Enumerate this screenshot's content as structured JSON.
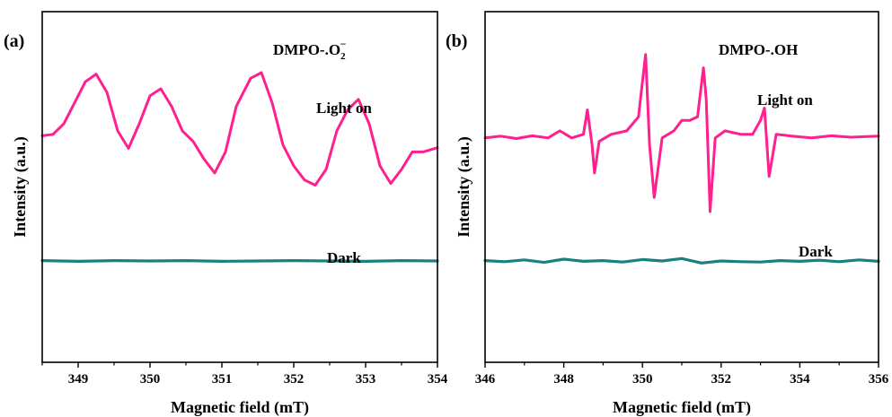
{
  "colors": {
    "light_on": "#ff1f8e",
    "dark": "#198080",
    "axis": "#000000"
  },
  "chart_data": [
    {
      "type": "line",
      "panel_label": "(a)",
      "title": "",
      "annotation_main": "DMPO-.O",
      "annotation_sub": "2",
      "annotation_sup": "−",
      "xlabel": "Magnetic field (mT)",
      "ylabel": "Intensity (a.u.)",
      "xlim": [
        348.5,
        354.0
      ],
      "xticks": [
        349,
        350,
        351,
        352,
        353,
        354
      ],
      "ylim": [
        0,
        1
      ],
      "grid": false,
      "series": [
        {
          "name": "Light on",
          "color": "#ff1f8e",
          "x": [
            348.5,
            348.65,
            348.8,
            348.95,
            349.1,
            349.25,
            349.4,
            349.55,
            349.7,
            349.85,
            350.0,
            350.15,
            350.3,
            350.45,
            350.6,
            350.75,
            350.9,
            351.05,
            351.2,
            351.4,
            351.55,
            351.7,
            351.85,
            352.0,
            352.15,
            352.3,
            352.45,
            352.6,
            352.75,
            352.9,
            353.05,
            353.2,
            353.35,
            353.5,
            353.65,
            353.8,
            354.0
          ],
          "y": [
            0.646,
            0.65,
            0.68,
            0.74,
            0.8,
            0.822,
            0.77,
            0.66,
            0.61,
            0.68,
            0.76,
            0.78,
            0.73,
            0.66,
            0.63,
            0.58,
            0.54,
            0.6,
            0.73,
            0.81,
            0.826,
            0.74,
            0.62,
            0.56,
            0.52,
            0.505,
            0.55,
            0.66,
            0.72,
            0.75,
            0.68,
            0.56,
            0.51,
            0.55,
            0.6,
            0.6,
            0.612
          ]
        },
        {
          "name": "Dark",
          "color": "#198080",
          "x": [
            348.5,
            349.0,
            349.5,
            350.0,
            350.5,
            351.0,
            351.5,
            352.0,
            352.5,
            353.0,
            353.5,
            354.0
          ],
          "y": [
            0.29,
            0.288,
            0.29,
            0.289,
            0.29,
            0.288,
            0.289,
            0.29,
            0.289,
            0.288,
            0.29,
            0.289
          ]
        }
      ]
    },
    {
      "type": "line",
      "panel_label": "(b)",
      "title": "",
      "annotation_main": "DMPO-.OH",
      "annotation_sub": "",
      "annotation_sup": "",
      "xlabel": "Magnetic field (mT)",
      "ylabel": "Intensity (a.u.)",
      "xlim": [
        346,
        356
      ],
      "xticks": [
        346,
        348,
        350,
        352,
        354,
        356
      ],
      "ylim": [
        0,
        1
      ],
      "grid": false,
      "series": [
        {
          "name": "Light on",
          "color": "#ff1f8e",
          "x": [
            346.0,
            346.4,
            346.8,
            347.2,
            347.6,
            347.9,
            348.2,
            348.5,
            348.6,
            348.72,
            348.78,
            348.9,
            349.2,
            349.6,
            349.9,
            350.0,
            350.08,
            350.18,
            350.3,
            350.5,
            350.8,
            351.0,
            351.2,
            351.4,
            351.55,
            351.62,
            351.72,
            351.85,
            352.1,
            352.5,
            352.8,
            353.0,
            353.1,
            353.22,
            353.4,
            353.8,
            354.3,
            354.8,
            355.3,
            356.0
          ],
          "y": [
            0.64,
            0.645,
            0.638,
            0.646,
            0.64,
            0.66,
            0.64,
            0.65,
            0.72,
            0.62,
            0.54,
            0.63,
            0.65,
            0.66,
            0.7,
            0.8,
            0.878,
            0.62,
            0.47,
            0.64,
            0.66,
            0.69,
            0.69,
            0.7,
            0.84,
            0.75,
            0.43,
            0.64,
            0.66,
            0.65,
            0.65,
            0.69,
            0.725,
            0.53,
            0.65,
            0.645,
            0.64,
            0.646,
            0.642,
            0.645
          ]
        },
        {
          "name": "Dark",
          "color": "#198080",
          "x": [
            346.0,
            346.5,
            347.0,
            347.5,
            348.0,
            348.5,
            349.0,
            349.5,
            350.0,
            350.5,
            351.0,
            351.5,
            352.0,
            352.5,
            353.0,
            353.5,
            354.0,
            354.5,
            355.0,
            355.5,
            356.0
          ],
          "y": [
            0.29,
            0.287,
            0.292,
            0.285,
            0.294,
            0.288,
            0.29,
            0.286,
            0.293,
            0.289,
            0.296,
            0.283,
            0.289,
            0.287,
            0.286,
            0.29,
            0.288,
            0.291,
            0.287,
            0.292,
            0.288
          ]
        }
      ]
    }
  ]
}
